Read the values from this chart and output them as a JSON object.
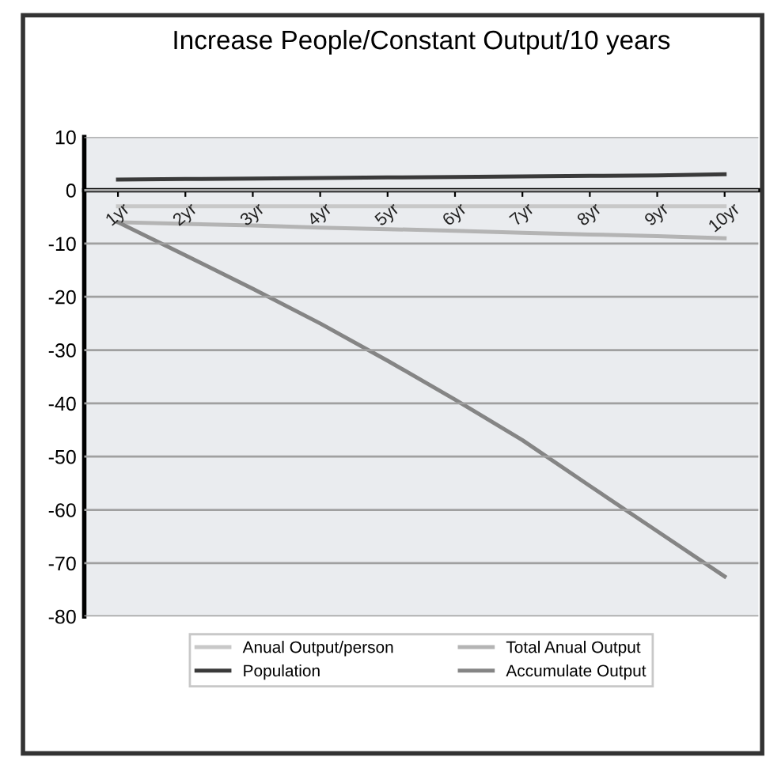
{
  "chart_data": {
    "type": "line",
    "title": "Increase People/Constant Output/10 years",
    "categories": [
      "1yr",
      "2yr",
      "3yr",
      "4yr",
      "5yr",
      "6yr",
      "7yr",
      "8yr",
      "9yr",
      "10yr"
    ],
    "series": [
      {
        "name": "Anual Output/person",
        "color": "#c8c8c8",
        "values": [
          -3,
          -3,
          -3,
          -3,
          -3,
          -3,
          -3,
          -3,
          -3,
          -3
        ]
      },
      {
        "name": "Population",
        "color": "#3a3a3a",
        "values": [
          2,
          2.1,
          2.2,
          2.3,
          2.4,
          2.5,
          2.6,
          2.7,
          2.8,
          3
        ]
      },
      {
        "name": "Total Anual Output",
        "color": "#b4b4b4",
        "values": [
          -6,
          -6.3,
          -6.6,
          -7,
          -7.3,
          -7.6,
          -8,
          -8.3,
          -8.6,
          -9
        ]
      },
      {
        "name": "Accumulate Output",
        "color": "#858585",
        "values": [
          -6,
          -12.2,
          -18.5,
          -25,
          -32,
          -39.3,
          -46.9,
          -55.5,
          -64,
          -72.5
        ]
      }
    ],
    "ylim": [
      -80,
      10
    ],
    "yticks": [
      -80,
      -70,
      -60,
      -50,
      -40,
      -30,
      -20,
      -10,
      0,
      10
    ],
    "grid": "y",
    "legend": "bottom",
    "marker": "none",
    "line_style": "solid"
  }
}
